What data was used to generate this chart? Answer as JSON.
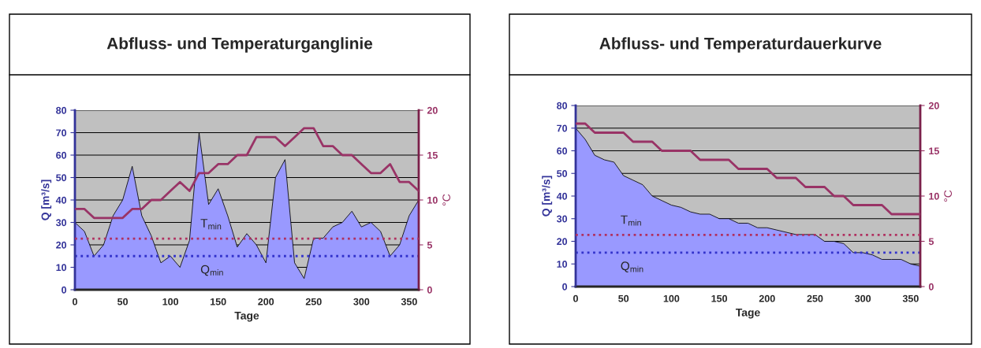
{
  "chart_data": [
    {
      "type": "area",
      "title": "Abfluss- und Temperaturganglinie",
      "xlabel": "Tage",
      "ylabel": "Q [m³/s]",
      "y2label": "°C",
      "x": [
        0,
        10,
        20,
        30,
        40,
        50,
        60,
        70,
        80,
        90,
        100,
        110,
        120,
        130,
        140,
        150,
        160,
        170,
        180,
        190,
        200,
        210,
        220,
        230,
        240,
        250,
        260,
        270,
        280,
        290,
        300,
        310,
        320,
        330,
        340,
        350,
        360
      ],
      "series": [
        {
          "color": "#9999ff",
          "values": [
            30,
            26,
            15,
            20,
            33,
            40,
            55,
            33,
            24,
            12,
            15,
            10,
            22,
            70,
            38,
            45,
            33,
            19,
            25,
            20,
            12,
            50,
            58,
            12,
            5,
            23,
            23,
            28,
            30,
            35,
            28,
            30,
            26,
            15,
            20,
            33,
            40
          ]
        },
        {
          "type": "line",
          "axis": "y2",
          "color": "#993366",
          "values": [
            9,
            9,
            8,
            8,
            8,
            8,
            9,
            9,
            10,
            10,
            11,
            12,
            11,
            13,
            13,
            14,
            14,
            15,
            15,
            17,
            17,
            17,
            16,
            17,
            18,
            18,
            16,
            16,
            15,
            15,
            14,
            13,
            13,
            14,
            12,
            12,
            11
          ]
        }
      ],
      "xlim": [
        0,
        360
      ],
      "xticks": [
        0,
        50,
        100,
        150,
        200,
        250,
        300,
        350
      ],
      "ylim": [
        0,
        80
      ],
      "yticks": [
        0,
        10,
        20,
        30,
        40,
        50,
        60,
        70,
        80
      ],
      "y2lim": [
        0,
        20
      ],
      "y2ticks": [
        0,
        5,
        10,
        15,
        20
      ],
      "grid": "y",
      "ref_lines": [
        {
          "axis": "y2",
          "value": 5.7,
          "label": "T$_{min}$",
          "color": "#b03060",
          "line_style": "dotted"
        },
        {
          "axis": "y",
          "value": 15,
          "label": "Q$_{min}$",
          "color": "#3333cc",
          "line_style": "dotted"
        }
      ]
    },
    {
      "type": "area",
      "title": "Abfluss- und Temperaturdauerkurve",
      "xlabel": "Tage",
      "ylabel": "Q [m³/s]",
      "y2label": "°C",
      "x": [
        0,
        10,
        20,
        30,
        40,
        50,
        60,
        70,
        80,
        90,
        100,
        110,
        120,
        130,
        140,
        150,
        160,
        170,
        180,
        190,
        200,
        210,
        220,
        230,
        240,
        250,
        260,
        270,
        280,
        290,
        300,
        310,
        320,
        330,
        340,
        350,
        360
      ],
      "series": [
        {
          "color": "#9999ff",
          "values": [
            70,
            65,
            58,
            56,
            55,
            49,
            47,
            45,
            40,
            38,
            36,
            35,
            33,
            32,
            32,
            30,
            30,
            28,
            28,
            26,
            26,
            25,
            24,
            23,
            23,
            23,
            20,
            20,
            19,
            15,
            15,
            14,
            12,
            12,
            12,
            10,
            9
          ]
        },
        {
          "type": "line",
          "axis": "y2",
          "color": "#993366",
          "values": [
            18,
            18,
            17,
            17,
            17,
            17,
            16,
            16,
            16,
            15,
            15,
            15,
            15,
            14,
            14,
            14,
            14,
            13,
            13,
            13,
            13,
            12,
            12,
            12,
            11,
            11,
            11,
            10,
            10,
            9,
            9,
            9,
            9,
            8,
            8,
            8,
            8
          ]
        }
      ],
      "xlim": [
        0,
        360
      ],
      "xticks": [
        0,
        50,
        100,
        150,
        200,
        250,
        300,
        350
      ],
      "ylim": [
        0,
        80
      ],
      "yticks": [
        0,
        10,
        20,
        30,
        40,
        50,
        60,
        70,
        80
      ],
      "y2lim": [
        0,
        20
      ],
      "y2ticks": [
        0,
        5,
        10,
        15,
        20
      ],
      "grid": "y",
      "ref_lines": [
        {
          "axis": "y2",
          "value": 5.7,
          "label": "T$_{min}$",
          "color": "#b03060",
          "line_style": "dotted"
        },
        {
          "axis": "y",
          "value": 15,
          "label": "Q$_{min}$",
          "color": "#3333cc",
          "line_style": "dotted"
        }
      ]
    }
  ]
}
